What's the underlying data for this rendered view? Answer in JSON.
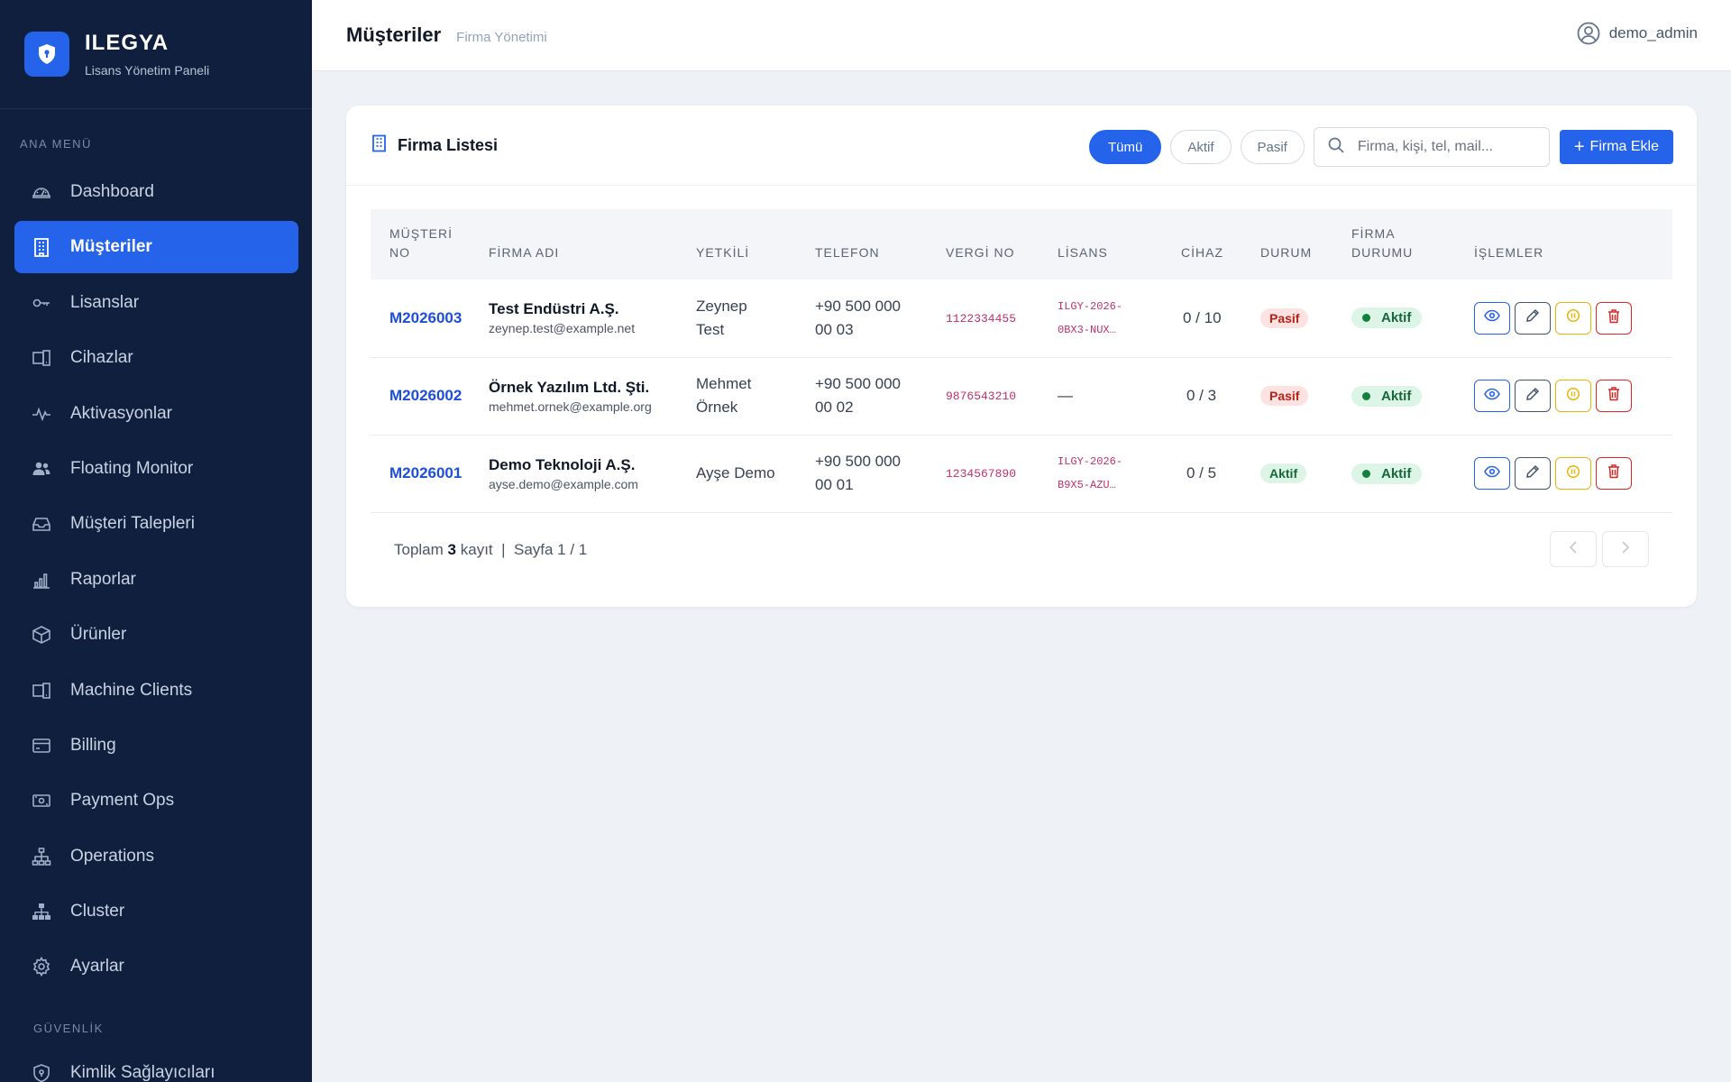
{
  "brand": {
    "name": "ILEGYA",
    "subtitle": "Lisans Yönetim Paneli"
  },
  "sidebar": {
    "section_main": "ANA MENÜ",
    "items": [
      {
        "label": "Dashboard",
        "icon": "gauge-icon"
      },
      {
        "label": "Müşteriler",
        "icon": "building-icon",
        "active": true
      },
      {
        "label": "Lisanslar",
        "icon": "key-icon"
      },
      {
        "label": "Cihazlar",
        "icon": "devices-icon"
      },
      {
        "label": "Aktivasyonlar",
        "icon": "activity-icon"
      },
      {
        "label": "Floating Monitor",
        "icon": "users-icon"
      },
      {
        "label": "Müşteri Talepleri",
        "icon": "inbox-icon"
      },
      {
        "label": "Raporlar",
        "icon": "bar-chart-icon"
      },
      {
        "label": "Ürünler",
        "icon": "box-icon"
      },
      {
        "label": "Machine Clients",
        "icon": "devices-icon"
      },
      {
        "label": "Billing",
        "icon": "credit-card-icon"
      },
      {
        "label": "Payment Ops",
        "icon": "cash-icon"
      },
      {
        "label": "Operations",
        "icon": "hierarchy-icon"
      },
      {
        "label": "Cluster",
        "icon": "cluster-icon"
      },
      {
        "label": "Ayarlar",
        "icon": "gear-icon"
      }
    ],
    "section_security": "GÜVENLİK",
    "security_items": [
      {
        "label": "Kimlik Sağlayıcıları",
        "icon": "shield-icon"
      }
    ]
  },
  "header": {
    "title": "Müşteriler",
    "subtitle": "Firma Yönetimi",
    "user": "demo_admin"
  },
  "card": {
    "title": "Firma Listesi",
    "filters": [
      "Tümü",
      "Aktif",
      "Pasif"
    ],
    "active_filter": "Tümü",
    "search_placeholder": "Firma, kişi, tel, mail...",
    "add_button": "Firma Ekle"
  },
  "table": {
    "headers": {
      "no_line1": "MÜŞTERİ",
      "no_line2": "NO",
      "firma": "FİRMA ADI",
      "yetkili": "YETKİLİ",
      "telefon": "TELEFON",
      "vergi": "VERGİ NO",
      "lisans": "LİSANS",
      "cihaz": "CİHAZ",
      "durum": "DURUM",
      "fdurum_line1": "FİRMA",
      "fdurum_line2": "DURUMU",
      "islemler": "İŞLEMLER"
    },
    "rows": [
      {
        "no": "M2026003",
        "firma": "Test Endüstri A.Ş.",
        "email": "zeynep.test@example.net",
        "yetkili_1": "Zeynep",
        "yetkili_2": "Test",
        "tel_1": "+90 500 000",
        "tel_2": "00 03",
        "vergi": "1122334455",
        "lisans_1": "ILGY-2026-",
        "lisans_2": "0BX3-NUX…",
        "cihaz": "0 / 10",
        "durum": "Pasif",
        "firma_durumu": "Aktif"
      },
      {
        "no": "M2026002",
        "firma": "Örnek Yazılım Ltd. Şti.",
        "email": "mehmet.ornek@example.org",
        "yetkili_1": "Mehmet",
        "yetkili_2": "Örnek",
        "tel_1": "+90 500 000",
        "tel_2": "00 02",
        "vergi": "9876543210",
        "lisans_1": "—",
        "lisans_2": "",
        "cihaz": "0 / 3",
        "durum": "Pasif",
        "firma_durumu": "Aktif"
      },
      {
        "no": "M2026001",
        "firma": "Demo Teknoloji A.Ş.",
        "email": "ayse.demo@example.com",
        "yetkili_1": "Ayşe Demo",
        "yetkili_2": "",
        "tel_1": "+90 500 000",
        "tel_2": "00 01",
        "vergi": "1234567890",
        "lisans_1": "ILGY-2026-",
        "lisans_2": "B9X5-AZU…",
        "cihaz": "0 / 5",
        "durum": "Aktif",
        "firma_durumu": "Aktif"
      }
    ]
  },
  "footer": {
    "total_prefix": "Toplam",
    "total": "3",
    "total_suffix": "kayıt",
    "separator": "|",
    "page": "Sayfa 1 / 1"
  },
  "colors": {
    "sidebar_bg": "#0f1f3d",
    "accent": "#2563eb",
    "badge_pasif": "#fde2e2",
    "badge_aktif": "#dcf5e6"
  }
}
